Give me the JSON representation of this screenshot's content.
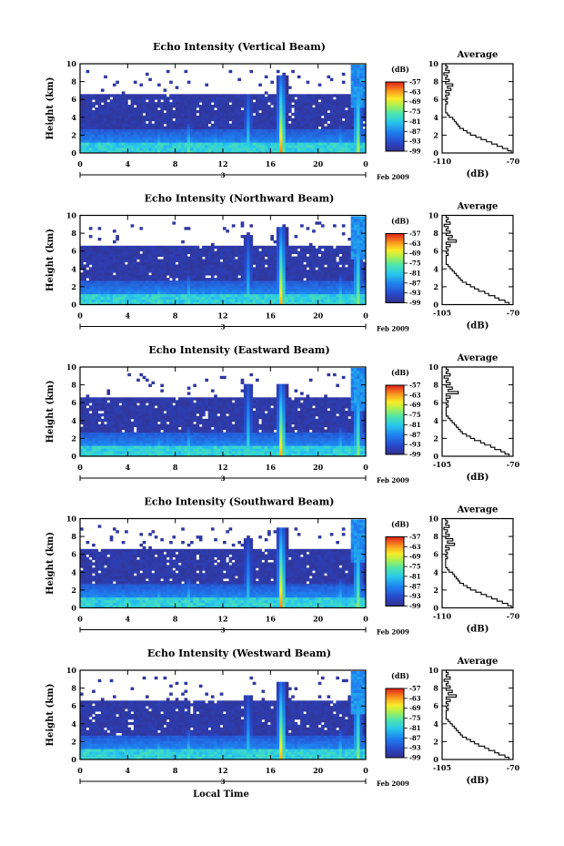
{
  "chart_data": [
    {
      "type": "heatmap",
      "title": "Echo Intensity (Vertical Beam)",
      "ylabel": "Height (km)",
      "xlim": [
        0,
        24
      ],
      "ylim": [
        0,
        10
      ],
      "xticks": [
        "0",
        "4",
        "8",
        "12",
        "16",
        "20",
        "0"
      ],
      "yticks": [
        "0",
        "2",
        "4",
        "6",
        "8",
        "10"
      ],
      "day_label": "3",
      "date_label": "Feb 2009",
      "colorbar": {
        "unit": "(dB)",
        "ticks": [
          "-57",
          "-63",
          "-69",
          "-75",
          "-81",
          "-87",
          "-93",
          "-99"
        ],
        "range": [
          -99,
          -57
        ]
      },
      "echo_top_km": 6.3,
      "convective_events": [
        {
          "time": 6.5,
          "top_km": 2.5,
          "strength": 0.55
        },
        {
          "time": 9.0,
          "top_km": 3.0,
          "strength": 0.6
        },
        {
          "time": 11.2,
          "top_km": 2.8,
          "strength": 0.55
        },
        {
          "time": 14.0,
          "top_km": 6.5,
          "strength": 0.5
        },
        {
          "time": 16.8,
          "top_km": 8.5,
          "strength": 1.0
        },
        {
          "time": 21.8,
          "top_km": 2.8,
          "strength": 0.6
        },
        {
          "time": 23.2,
          "top_km": 9.5,
          "strength": 0.75
        }
      ],
      "average_profile": {
        "title": "Average",
        "xlabel": "(dB)",
        "xlim": [
          -110,
          -70
        ],
        "xticks": [
          "-110",
          "-70"
        ],
        "ylim": [
          0,
          10
        ],
        "yticks": [
          "0",
          "2",
          "4",
          "6",
          "8",
          "10"
        ],
        "height_km": [
          0,
          0.25,
          0.5,
          0.75,
          1,
          1.25,
          1.5,
          1.75,
          2,
          2.25,
          2.5,
          2.75,
          3,
          3.25,
          3.5,
          3.75,
          4,
          4.25,
          4.5,
          4.75,
          5,
          5.25,
          5.5,
          5.75,
          6,
          6.25,
          6.5,
          6.75,
          7,
          7.25,
          7.5,
          7.75,
          8,
          8.25,
          8.5,
          8.75,
          9,
          9.25,
          9.5,
          9.75
        ],
        "values_db": [
          -71,
          -73,
          -76,
          -79,
          -82,
          -85,
          -88,
          -91,
          -94,
          -96,
          -98,
          -100,
          -101,
          -102,
          -103,
          -104,
          -106,
          -107,
          -108,
          -108,
          -108,
          -108,
          -107,
          -108,
          -107,
          -108,
          -106,
          -108,
          -105,
          -107,
          -104,
          -108,
          -106,
          -108,
          -107,
          -109,
          -106,
          -108,
          -107,
          -108
        ]
      }
    },
    {
      "type": "heatmap",
      "title": "Echo Intensity (Northward Beam)",
      "ylabel": "Height (km)",
      "xlim": [
        0,
        24
      ],
      "ylim": [
        0,
        10
      ],
      "xticks": [
        "0",
        "4",
        "8",
        "12",
        "16",
        "20",
        "0"
      ],
      "yticks": [
        "0",
        "2",
        "4",
        "6",
        "8",
        "10"
      ],
      "day_label": "3",
      "date_label": "Feb 2009",
      "colorbar": {
        "unit": "(dB)",
        "ticks": [
          "-57",
          "-63",
          "-69",
          "-75",
          "-81",
          "-87",
          "-93",
          "-99"
        ],
        "range": [
          -99,
          -57
        ]
      },
      "echo_top_km": 6.3,
      "convective_events": [
        {
          "time": 6.5,
          "top_km": 2.5,
          "strength": 0.55
        },
        {
          "time": 9.0,
          "top_km": 3.0,
          "strength": 0.55
        },
        {
          "time": 11.2,
          "top_km": 2.8,
          "strength": 0.5
        },
        {
          "time": 14.0,
          "top_km": 7.5,
          "strength": 0.45
        },
        {
          "time": 16.8,
          "top_km": 8.5,
          "strength": 0.95
        },
        {
          "time": 21.8,
          "top_km": 3.0,
          "strength": 0.6
        },
        {
          "time": 23.2,
          "top_km": 9.5,
          "strength": 0.7
        }
      ],
      "average_profile": {
        "title": "Average",
        "xlabel": "(dB)",
        "xlim": [
          -105,
          -70
        ],
        "xticks": [
          "-105",
          "-70"
        ],
        "ylim": [
          0,
          10
        ],
        "yticks": [
          "0",
          "2",
          "4",
          "6",
          "8",
          "10"
        ],
        "height_km": [
          0,
          0.25,
          0.5,
          0.75,
          1,
          1.25,
          1.5,
          1.75,
          2,
          2.25,
          2.5,
          2.75,
          3,
          3.25,
          3.5,
          3.75,
          4,
          4.25,
          4.5,
          4.75,
          5,
          5.25,
          5.5,
          5.75,
          6,
          6.25,
          6.5,
          6.75,
          7,
          7.25,
          7.5,
          7.75,
          8,
          8.25,
          8.5,
          8.75,
          9,
          9.25,
          9.5,
          9.75
        ],
        "values_db": [
          -72,
          -74,
          -77,
          -79,
          -82,
          -84,
          -87,
          -89,
          -91,
          -93,
          -95,
          -96,
          -97,
          -98,
          -99,
          -100,
          -101,
          -102,
          -103,
          -103,
          -103,
          -103,
          -102,
          -103,
          -102,
          -103,
          -101,
          -103,
          -98,
          -102,
          -100,
          -103,
          -101,
          -103,
          -102,
          -104,
          -101,
          -103,
          -102,
          -103
        ]
      }
    },
    {
      "type": "heatmap",
      "title": "Echo Intensity (Eastward Beam)",
      "ylabel": "Height (km)",
      "xlim": [
        0,
        24
      ],
      "ylim": [
        0,
        10
      ],
      "xticks": [
        "0",
        "4",
        "8",
        "12",
        "16",
        "20",
        "0"
      ],
      "yticks": [
        "0",
        "2",
        "4",
        "6",
        "8",
        "10"
      ],
      "day_label": "3",
      "date_label": "Feb 2009",
      "colorbar": {
        "unit": "(dB)",
        "ticks": [
          "-57",
          "-63",
          "-69",
          "-75",
          "-81",
          "-87",
          "-93",
          "-99"
        ],
        "range": [
          -99,
          -57
        ]
      },
      "echo_top_km": 6.3,
      "convective_events": [
        {
          "time": 6.5,
          "top_km": 2.5,
          "strength": 0.55
        },
        {
          "time": 9.0,
          "top_km": 3.0,
          "strength": 0.55
        },
        {
          "time": 11.2,
          "top_km": 2.8,
          "strength": 0.5
        },
        {
          "time": 14.0,
          "top_km": 8.0,
          "strength": 0.5
        },
        {
          "time": 16.8,
          "top_km": 8.0,
          "strength": 0.95
        },
        {
          "time": 21.8,
          "top_km": 3.0,
          "strength": 0.6
        },
        {
          "time": 23.2,
          "top_km": 9.5,
          "strength": 0.7
        }
      ],
      "average_profile": {
        "title": "Average",
        "xlabel": "(dB)",
        "xlim": [
          -105,
          -70
        ],
        "xticks": [
          "-105",
          "-70"
        ],
        "ylim": [
          0,
          10
        ],
        "yticks": [
          "0",
          "2",
          "4",
          "6",
          "8",
          "10"
        ],
        "height_km": [
          0,
          0.25,
          0.5,
          0.75,
          1,
          1.25,
          1.5,
          1.75,
          2,
          2.25,
          2.5,
          2.75,
          3,
          3.25,
          3.5,
          3.75,
          4,
          4.25,
          4.5,
          4.75,
          5,
          5.25,
          5.5,
          5.75,
          6,
          6.25,
          6.5,
          6.75,
          7,
          7.25,
          7.5,
          7.75,
          8,
          8.25,
          8.5,
          8.75,
          9,
          9.25,
          9.5,
          9.75
        ],
        "values_db": [
          -72,
          -74,
          -76,
          -79,
          -81,
          -84,
          -86,
          -89,
          -91,
          -93,
          -95,
          -96,
          -97,
          -98,
          -99,
          -100,
          -101,
          -102,
          -103,
          -103,
          -103,
          -103,
          -102,
          -103,
          -102,
          -103,
          -101,
          -103,
          -97,
          -102,
          -100,
          -103,
          -101,
          -103,
          -102,
          -104,
          -101,
          -103,
          -102,
          -103
        ]
      }
    },
    {
      "type": "heatmap",
      "title": "Echo Intensity (Southward Beam)",
      "ylabel": "Height (km)",
      "xlim": [
        0,
        24
      ],
      "ylim": [
        0,
        10
      ],
      "xticks": [
        "0",
        "4",
        "8",
        "12",
        "16",
        "20",
        "0"
      ],
      "yticks": [
        "0",
        "2",
        "4",
        "6",
        "8",
        "10"
      ],
      "day_label": "3",
      "date_label": "Feb 2009",
      "colorbar": {
        "unit": "(dB)",
        "ticks": [
          "-57",
          "-63",
          "-69",
          "-75",
          "-81",
          "-87",
          "-93",
          "-99"
        ],
        "range": [
          -99,
          -57
        ]
      },
      "echo_top_km": 6.3,
      "convective_events": [
        {
          "time": 6.5,
          "top_km": 2.5,
          "strength": 0.55
        },
        {
          "time": 9.0,
          "top_km": 3.0,
          "strength": 0.55
        },
        {
          "time": 11.2,
          "top_km": 2.8,
          "strength": 0.5
        },
        {
          "time": 14.0,
          "top_km": 7.5,
          "strength": 0.45
        },
        {
          "time": 16.8,
          "top_km": 9.0,
          "strength": 1.0
        },
        {
          "time": 21.8,
          "top_km": 3.0,
          "strength": 0.6
        },
        {
          "time": 23.2,
          "top_km": 9.5,
          "strength": 0.7
        }
      ],
      "average_profile": {
        "title": "Average",
        "xlabel": "(dB)",
        "xlim": [
          -110,
          -70
        ],
        "xticks": [
          "-110",
          "-70"
        ],
        "ylim": [
          0,
          10
        ],
        "yticks": [
          "0",
          "2",
          "4",
          "6",
          "8",
          "10"
        ],
        "height_km": [
          0,
          0.25,
          0.5,
          0.75,
          1,
          1.25,
          1.5,
          1.75,
          2,
          2.25,
          2.5,
          2.75,
          3,
          3.25,
          3.5,
          3.75,
          4,
          4.25,
          4.5,
          4.75,
          5,
          5.25,
          5.5,
          5.75,
          6,
          6.25,
          6.5,
          6.75,
          7,
          7.25,
          7.5,
          7.75,
          8,
          8.25,
          8.5,
          8.75,
          9,
          9.25,
          9.5,
          9.75
        ],
        "values_db": [
          -71,
          -73,
          -76,
          -79,
          -82,
          -85,
          -88,
          -91,
          -94,
          -96,
          -98,
          -100,
          -101,
          -102,
          -103,
          -104,
          -106,
          -107,
          -108,
          -108,
          -108,
          -108,
          -107,
          -108,
          -107,
          -108,
          -106,
          -108,
          -103,
          -107,
          -104,
          -108,
          -106,
          -108,
          -107,
          -109,
          -106,
          -108,
          -107,
          -108
        ]
      }
    },
    {
      "type": "heatmap",
      "title": "Echo Intensity (Westward Beam)",
      "ylabel": "Height (km)",
      "xlabel": "Local Time",
      "xlim": [
        0,
        24
      ],
      "ylim": [
        0,
        10
      ],
      "xticks": [
        "0",
        "4",
        "8",
        "12",
        "16",
        "20",
        "0"
      ],
      "yticks": [
        "0",
        "2",
        "4",
        "6",
        "8",
        "10"
      ],
      "day_label": "3",
      "date_label": "Feb 2009",
      "colorbar": {
        "unit": "(dB)",
        "ticks": [
          "-57",
          "-63",
          "-69",
          "-75",
          "-81",
          "-87",
          "-93",
          "-99"
        ],
        "range": [
          -99,
          -57
        ]
      },
      "echo_top_km": 6.3,
      "convective_events": [
        {
          "time": 6.5,
          "top_km": 2.5,
          "strength": 0.55
        },
        {
          "time": 9.0,
          "top_km": 3.0,
          "strength": 0.55
        },
        {
          "time": 11.2,
          "top_km": 2.8,
          "strength": 0.5
        },
        {
          "time": 14.0,
          "top_km": 7.0,
          "strength": 0.45
        },
        {
          "time": 16.8,
          "top_km": 8.5,
          "strength": 0.95
        },
        {
          "time": 21.8,
          "top_km": 3.0,
          "strength": 0.6
        },
        {
          "time": 23.2,
          "top_km": 9.5,
          "strength": 0.7
        }
      ],
      "average_profile": {
        "title": "Average",
        "xlabel": "(dB)",
        "xlim": [
          -105,
          -70
        ],
        "xticks": [
          "-105",
          "-70"
        ],
        "ylim": [
          0,
          10
        ],
        "yticks": [
          "0",
          "2",
          "4",
          "6",
          "8",
          "10"
        ],
        "height_km": [
          0,
          0.25,
          0.5,
          0.75,
          1,
          1.25,
          1.5,
          1.75,
          2,
          2.25,
          2.5,
          2.75,
          3,
          3.25,
          3.5,
          3.75,
          4,
          4.25,
          4.5,
          4.75,
          5,
          5.25,
          5.5,
          5.75,
          6,
          6.25,
          6.5,
          6.75,
          7,
          7.25,
          7.5,
          7.75,
          8,
          8.25,
          8.5,
          8.75,
          9,
          9.25,
          9.5,
          9.75
        ],
        "values_db": [
          -72,
          -74,
          -77,
          -79,
          -82,
          -84,
          -87,
          -89,
          -91,
          -93,
          -95,
          -96,
          -97,
          -98,
          -99,
          -100,
          -101,
          -102,
          -103,
          -103,
          -103,
          -103,
          -102,
          -103,
          -102,
          -103,
          -101,
          -103,
          -98,
          -102,
          -100,
          -103,
          -101,
          -103,
          -102,
          -104,
          -101,
          -103,
          -102,
          -103
        ]
      }
    }
  ]
}
